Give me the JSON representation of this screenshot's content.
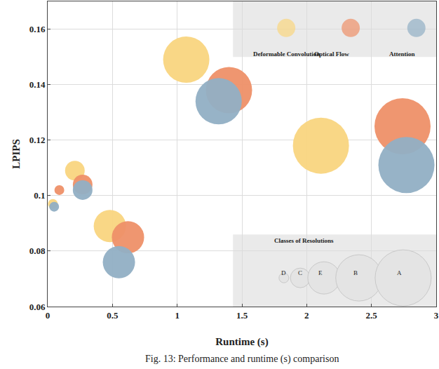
{
  "chart_data": {
    "type": "scatter",
    "xlabel": "Runtime (s)",
    "ylabel": "LPIPS",
    "caption": "Fig. 13: Performance and runtime (s) comparison",
    "xlim": [
      0,
      3
    ],
    "xticks": [
      0,
      0.5,
      1,
      1.5,
      2,
      2.5,
      3
    ],
    "ylim": [
      0.06,
      0.17
    ],
    "yticks": [
      0.06,
      0.08,
      0.1,
      0.12,
      0.14,
      0.16
    ],
    "grid": true,
    "size_title": "Classes of Resolutions",
    "classes": [
      "D",
      "C",
      "E",
      "B",
      "A"
    ],
    "class_sizes": [
      14,
      28,
      46,
      66,
      80
    ],
    "series": [
      {
        "name": "Deformable Convolution",
        "color": "#f9d57f",
        "marker": "circle",
        "x": [
          0.04,
          0.21,
          0.48,
          1.07,
          2.11
        ],
        "values": [
          0.097,
          0.109,
          0.089,
          0.149,
          0.118
        ],
        "class": [
          "D",
          "C",
          "E",
          "B",
          "A"
        ]
      },
      {
        "name": "Optical Flow",
        "color": "#ee9068",
        "marker": "circle",
        "x": [
          0.09,
          0.27,
          0.62,
          1.4,
          2.74
        ],
        "values": [
          0.102,
          0.104,
          0.085,
          0.138,
          0.125
        ],
        "class": [
          "D",
          "C",
          "E",
          "B",
          "A"
        ]
      },
      {
        "name": "Attention",
        "color": "#91afc4",
        "marker": "circle",
        "x": [
          0.05,
          0.27,
          0.55,
          1.32,
          2.77
        ],
        "values": [
          0.096,
          0.102,
          0.076,
          0.134,
          0.111
        ],
        "class": [
          "D",
          "C",
          "E",
          "B",
          "A"
        ]
      }
    ]
  }
}
